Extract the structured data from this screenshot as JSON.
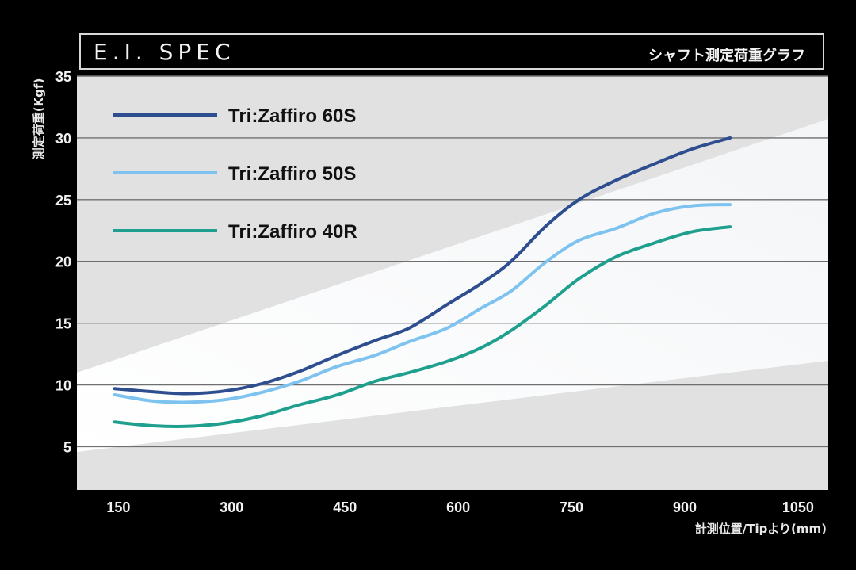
{
  "header": {
    "title": "E.I. SPEC",
    "subtitle": "シャフト測定荷重グラフ"
  },
  "chart_data": {
    "type": "line",
    "title": "E.I. SPEC",
    "subtitle": "シャフト測定荷重グラフ",
    "xlabel": "計測位置/Tipより(mm)",
    "ylabel": "測定荷重(Kgf)",
    "xlim": [
      95,
      1090
    ],
    "ylim": [
      1.5,
      35
    ],
    "x_ticks": [
      150,
      300,
      450,
      600,
      750,
      900,
      1050
    ],
    "y_ticks": [
      5,
      10,
      15,
      20,
      25,
      30,
      35
    ],
    "grid": true,
    "legend_position": "top-left",
    "series": [
      {
        "name": "Tri:Zaffiro 60S",
        "color": "#2e4e8f",
        "points": [
          [
            145,
            9.7
          ],
          [
            195,
            9.45
          ],
          [
            240,
            9.3
          ],
          [
            290,
            9.5
          ],
          [
            340,
            10.1
          ],
          [
            390,
            11.1
          ],
          [
            440,
            12.4
          ],
          [
            490,
            13.6
          ],
          [
            535,
            14.6
          ],
          [
            585,
            16.5
          ],
          [
            630,
            18.2
          ],
          [
            670,
            20.0
          ],
          [
            715,
            22.8
          ],
          [
            760,
            25.0
          ],
          [
            810,
            26.6
          ],
          [
            860,
            27.9
          ],
          [
            910,
            29.1
          ],
          [
            960,
            30.0
          ]
        ]
      },
      {
        "name": "Tri:Zaffiro 50S",
        "color": "#7ec3ef",
        "points": [
          [
            145,
            9.2
          ],
          [
            195,
            8.7
          ],
          [
            240,
            8.6
          ],
          [
            290,
            8.8
          ],
          [
            340,
            9.4
          ],
          [
            390,
            10.3
          ],
          [
            440,
            11.5
          ],
          [
            490,
            12.4
          ],
          [
            535,
            13.5
          ],
          [
            585,
            14.6
          ],
          [
            630,
            16.2
          ],
          [
            670,
            17.6
          ],
          [
            715,
            19.9
          ],
          [
            760,
            21.7
          ],
          [
            810,
            22.7
          ],
          [
            860,
            23.9
          ],
          [
            910,
            24.5
          ],
          [
            960,
            24.6
          ]
        ]
      },
      {
        "name": "Tri:Zaffiro 40R",
        "color": "#1fa08f",
        "points": [
          [
            145,
            7.0
          ],
          [
            195,
            6.7
          ],
          [
            240,
            6.65
          ],
          [
            290,
            6.9
          ],
          [
            340,
            7.5
          ],
          [
            390,
            8.4
          ],
          [
            440,
            9.2
          ],
          [
            490,
            10.3
          ],
          [
            535,
            11.0
          ],
          [
            585,
            11.9
          ],
          [
            630,
            13.0
          ],
          [
            670,
            14.4
          ],
          [
            715,
            16.4
          ],
          [
            760,
            18.6
          ],
          [
            810,
            20.4
          ],
          [
            860,
            21.5
          ],
          [
            910,
            22.4
          ],
          [
            960,
            22.8
          ]
        ]
      }
    ]
  }
}
